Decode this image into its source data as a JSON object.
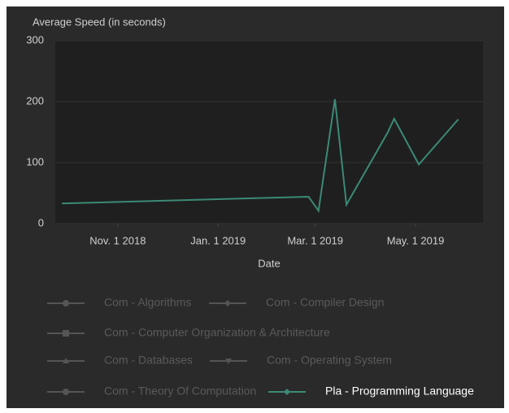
{
  "chart_data": {
    "type": "line",
    "title": "Average Speed (in seconds)",
    "x_label": "Date",
    "xlim": [
      "2018-09-24",
      "2019-06-11"
    ],
    "xticks": [
      {
        "value": "2018-11-01",
        "label": "Nov. 1 2018"
      },
      {
        "value": "2019-01-01",
        "label": "Jan. 1 2019"
      },
      {
        "value": "2019-03-01",
        "label": "Mar. 1 2019"
      },
      {
        "value": "2019-05-01",
        "label": "May. 1 2019"
      }
    ],
    "ylim": [
      0,
      300
    ],
    "yticks": [
      0,
      100,
      200,
      300
    ],
    "grid": true,
    "series": [
      {
        "name": "Com - Algorithms",
        "color": "#555555",
        "marker": "circle",
        "visible": false,
        "x": [],
        "values": []
      },
      {
        "name": "Com - Compiler Design",
        "color": "#555555",
        "marker": "diamond",
        "visible": false,
        "x": [],
        "values": []
      },
      {
        "name": "Com - Computer Organization & Architecture",
        "color": "#555555",
        "marker": "square",
        "visible": false,
        "x": [],
        "values": []
      },
      {
        "name": "Com - Databases",
        "color": "#555555",
        "marker": "triangle",
        "visible": false,
        "x": [],
        "values": []
      },
      {
        "name": "Com - Operating System",
        "color": "#555555",
        "marker": "triangle-down",
        "visible": false,
        "x": [],
        "values": []
      },
      {
        "name": "Com - Theory Of Computation",
        "color": "#555555",
        "marker": "circle",
        "visible": false,
        "x": [],
        "values": []
      },
      {
        "name": "Pla - Programming Language",
        "color": "#3b8a76",
        "marker": "diamond",
        "visible": true,
        "x": [
          "2018-09-28",
          "2019-02-25",
          "2019-03-03",
          "2019-03-13",
          "2019-03-20",
          "2019-04-14",
          "2019-04-18",
          "2019-05-03",
          "2019-05-27"
        ],
        "values": [
          33,
          44,
          21,
          204,
          31,
          149,
          172,
          97,
          171
        ]
      }
    ]
  }
}
